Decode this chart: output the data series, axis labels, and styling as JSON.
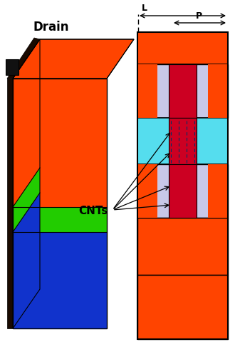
{
  "bg_color": "#ffffff",
  "left_box": {
    "label": "Drain",
    "orange_color": "#FF4400",
    "green_color": "#22CC00",
    "blue_color": "#1133CC",
    "dark_color": "#222200"
  },
  "right_diagram": {
    "orange_color": "#FF4400",
    "light_purple": "#C8C8E8",
    "red_stripe": "#CC0022",
    "cyan_color": "#55DDEE",
    "border_color": "#000000"
  },
  "arrow_L_label": "L",
  "arrow_P_label": "P",
  "cnts_text": "CNTs"
}
